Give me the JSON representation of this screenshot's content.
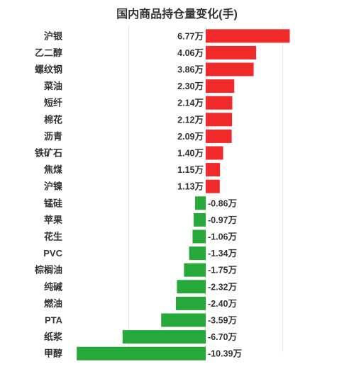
{
  "chart_data": {
    "type": "bar",
    "orientation": "horizontal",
    "title": "国内商品持仓量变化(手)",
    "categories": [
      "沪银",
      "乙二醇",
      "螺纹钢",
      "菜油",
      "短纤",
      "棉花",
      "沥青",
      "铁矿石",
      "焦煤",
      "沪镍",
      "锰硅",
      "苹果",
      "花生",
      "PVC",
      "棕榈油",
      "纯碱",
      "燃油",
      "PTA",
      "纸浆",
      "甲醇"
    ],
    "values": [
      6.77,
      4.06,
      3.86,
      2.3,
      2.14,
      2.12,
      2.09,
      1.4,
      1.15,
      1.13,
      -0.86,
      -0.97,
      -1.06,
      -1.34,
      -1.75,
      -2.32,
      -2.4,
      -3.59,
      -6.7,
      -10.39
    ],
    "value_labels": [
      "6.77万",
      "4.06万",
      "3.86万",
      "2.30万",
      "2.14万",
      "2.12万",
      "2.09万",
      "1.40万",
      "1.15万",
      "1.13万",
      "-0.86万",
      "-0.97万",
      "-1.06万",
      "-1.34万",
      "-1.75万",
      "-2.32万",
      "-2.40万",
      "-3.59万",
      "-6.70万",
      "-10.39万"
    ],
    "unit": "万",
    "xlim": [
      -11,
      11
    ],
    "grid": true,
    "colors": {
      "positive": "#f02a2a",
      "negative": "#27a83a",
      "grid": "#e6e6e6"
    }
  }
}
